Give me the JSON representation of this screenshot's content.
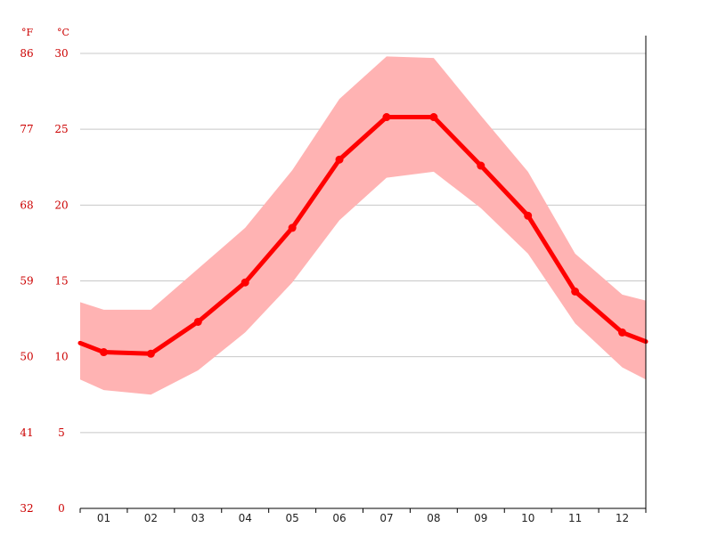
{
  "chart_data": {
    "type": "line",
    "title": "",
    "xlabel": "",
    "ylabel": "",
    "units": {
      "fahrenheit": "°F",
      "celsius": "°C"
    },
    "categories": [
      "01",
      "02",
      "03",
      "04",
      "05",
      "06",
      "07",
      "08",
      "09",
      "10",
      "11",
      "12"
    ],
    "ylim": [
      0,
      30
    ],
    "yticks_c": [
      "0",
      "5",
      "10",
      "15",
      "20",
      "25",
      "30"
    ],
    "yticks_f": [
      "32",
      "41",
      "50",
      "59",
      "68",
      "77",
      "86"
    ],
    "grid": true,
    "series": [
      {
        "values": [
          10.3,
          10.2,
          12.3,
          14.9,
          18.5,
          23.0,
          25.8,
          25.8,
          22.6,
          19.3,
          14.3,
          11.6
        ]
      }
    ],
    "bands": {
      "min": [
        7.8,
        7.5,
        9.1,
        11.6,
        14.9,
        19.0,
        21.8,
        22.2,
        19.8,
        16.8,
        12.2,
        9.3
      ],
      "max": [
        13.1,
        13.1,
        15.8,
        18.5,
        22.3,
        27.0,
        29.8,
        29.7,
        25.9,
        22.2,
        16.8,
        14.1
      ]
    },
    "colors": {
      "line": "#ff0000",
      "band": "#ffb3b3",
      "grid": "#c8c8c8",
      "tick_text": "#cc0000"
    }
  }
}
